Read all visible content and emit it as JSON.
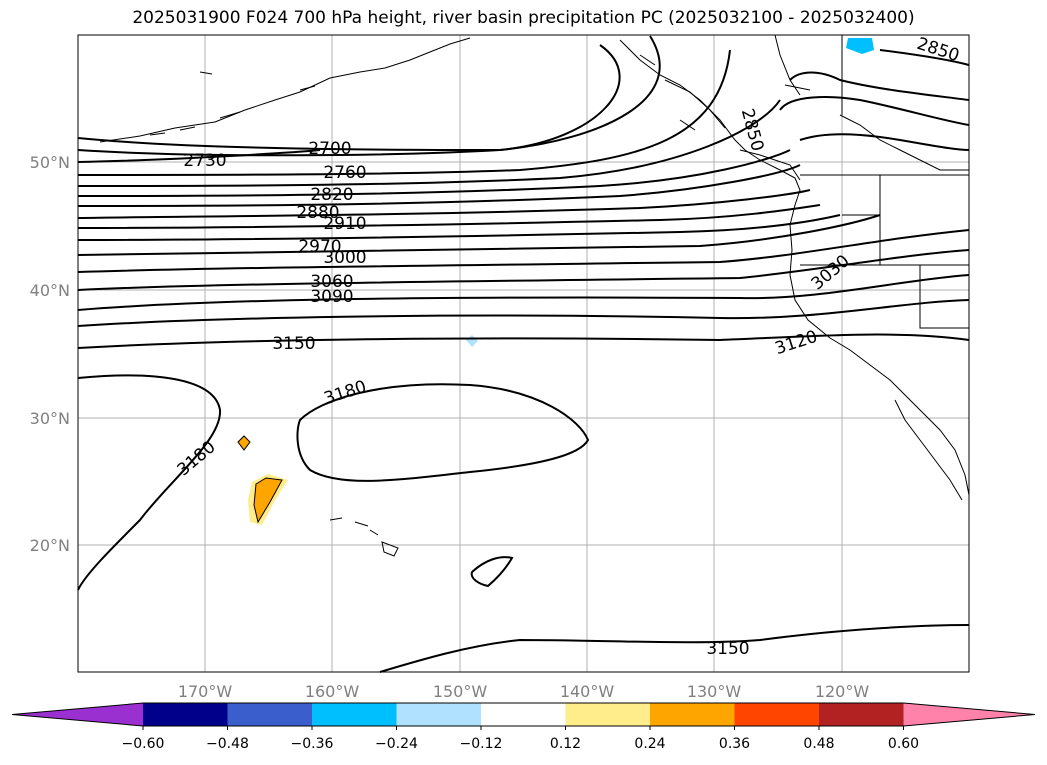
{
  "title": "2025031900 F024 700 hPa height, river basin precipitation PC (2025032100 - 2025032400)",
  "map": {
    "lat_labels": [
      "50°N",
      "40°N",
      "30°N",
      "20°N"
    ],
    "lon_labels": [
      "170°W",
      "160°W",
      "150°W",
      "140°W",
      "130°W",
      "120°W"
    ],
    "contour_labels": [
      "2700",
      "2730",
      "2760",
      "2820",
      "2880",
      "2910",
      "2970",
      "3000",
      "3060",
      "3090",
      "3150",
      "3180",
      "3180",
      "3120",
      "3030",
      "2850",
      "2850",
      "3150"
    ]
  },
  "colorbar": {
    "tick_labels": [
      "−0.60",
      "−0.48",
      "−0.36",
      "−0.24",
      "−0.12",
      "0.12",
      "0.24",
      "0.36",
      "0.48",
      "0.60"
    ],
    "colors": [
      "#9b30d0",
      "#00008b",
      "#3a5fcd",
      "#00bfff",
      "#b0e2ff",
      "#ffffff",
      "#ffec8b",
      "#ffa500",
      "#ff4500",
      "#b22222",
      "#ff82ab"
    ]
  }
}
